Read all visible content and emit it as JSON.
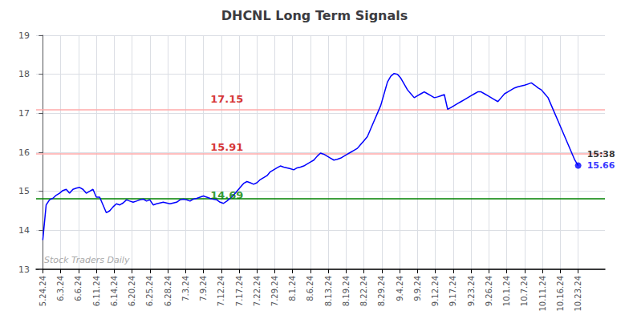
{
  "chart_data": {
    "type": "line",
    "title": "DHCNL Long Term Signals",
    "watermark": "Stock Traders Daily",
    "x": [
      0,
      1,
      2,
      3,
      4,
      5,
      6,
      7,
      8,
      9,
      10,
      11,
      12,
      13,
      14,
      15,
      16,
      17,
      18,
      19,
      20,
      21,
      22,
      23,
      24,
      25,
      26,
      27,
      28,
      29,
      30,
      31,
      32,
      33,
      34,
      35,
      36,
      37,
      38,
      39,
      40,
      41,
      42,
      43,
      44,
      45,
      46,
      47,
      48,
      49,
      50,
      51,
      52,
      53,
      54,
      55,
      56,
      57,
      58,
      59,
      60,
      61,
      62,
      63,
      64,
      65,
      66,
      67,
      68,
      69,
      70,
      71,
      72,
      73,
      74,
      75,
      76,
      77,
      78,
      79,
      80,
      81,
      82,
      83,
      84,
      85,
      86,
      87,
      88,
      89,
      90,
      91,
      92,
      93,
      94,
      95,
      96,
      97,
      98,
      99,
      100,
      101,
      102,
      103,
      104,
      105,
      106,
      107,
      108,
      109,
      110,
      111,
      112,
      113,
      114,
      115,
      116,
      117,
      118,
      119,
      120,
      121,
      122,
      123,
      124,
      125,
      126,
      127,
      128,
      129,
      130,
      131,
      132,
      133,
      134,
      135,
      136,
      137,
      138,
      139,
      140,
      141,
      142,
      143,
      144,
      145,
      146,
      147,
      148,
      149,
      150,
      151,
      152,
      153,
      154,
      155,
      156,
      157,
      158,
      159,
      160
    ],
    "series": [
      {
        "color": "blue",
        "values": [
          13.75,
          14.65,
          14.78,
          14.82,
          14.9,
          14.95,
          15.02,
          15.05,
          14.95,
          15.05,
          15.08,
          15.1,
          15.05,
          14.95,
          15.0,
          15.05,
          14.85,
          14.85,
          14.65,
          14.45,
          14.5,
          14.6,
          14.68,
          14.65,
          14.7,
          14.78,
          14.75,
          14.72,
          14.75,
          14.78,
          14.8,
          14.75,
          14.78,
          14.65,
          14.68,
          14.7,
          14.72,
          14.7,
          14.68,
          14.7,
          14.72,
          14.78,
          14.8,
          14.78,
          14.75,
          14.8,
          14.82,
          14.85,
          14.88,
          14.85,
          14.82,
          14.8,
          14.78,
          14.72,
          14.69,
          14.75,
          14.82,
          14.9,
          15.0,
          15.1,
          15.2,
          15.25,
          15.22,
          15.18,
          15.22,
          15.3,
          15.35,
          15.4,
          15.5,
          15.55,
          15.6,
          15.65,
          15.62,
          15.6,
          15.58,
          15.55,
          15.6,
          15.62,
          15.65,
          15.7,
          15.75,
          15.8,
          15.9,
          15.98,
          15.95,
          15.9,
          15.85,
          15.8,
          15.82,
          15.85,
          15.9,
          15.95,
          16.0,
          16.05,
          16.1,
          16.2,
          16.3,
          16.4,
          16.6,
          16.8,
          17.0,
          17.2,
          17.5,
          17.8,
          17.95,
          18.02,
          18.0,
          17.9,
          17.75,
          17.6,
          17.5,
          17.4,
          17.45,
          17.5,
          17.55,
          17.5,
          17.45,
          17.4,
          17.42,
          17.45,
          17.48,
          17.1,
          17.15,
          17.2,
          17.25,
          17.3,
          17.35,
          17.4,
          17.45,
          17.5,
          17.55,
          17.55,
          17.5,
          17.45,
          17.4,
          17.35,
          17.3,
          17.4,
          17.5,
          17.55,
          17.6,
          17.65,
          17.68,
          17.7,
          17.72,
          17.75,
          17.78,
          17.72,
          17.65,
          17.6,
          17.5,
          17.4,
          17.2,
          17.0,
          16.8,
          16.6,
          16.4,
          16.2,
          16.0,
          15.8,
          15.66
        ]
      }
    ],
    "xlim": [
      -2,
      168
    ],
    "xticks": [
      {
        "value": 0,
        "label": "5.24.24"
      },
      {
        "value": 5.333,
        "label": "6.3.24"
      },
      {
        "value": 10.667,
        "label": "6.6.24"
      },
      {
        "value": 16,
        "label": "6.11.24"
      },
      {
        "value": 21.333,
        "label": "6.14.24"
      },
      {
        "value": 26.667,
        "label": "6.20.24"
      },
      {
        "value": 32,
        "label": "6.25.24"
      },
      {
        "value": 37.333,
        "label": "6.28.24"
      },
      {
        "value": 42.667,
        "label": "7.3.24"
      },
      {
        "value": 48,
        "label": "7.9.24"
      },
      {
        "value": 53.333,
        "label": "7.12.24"
      },
      {
        "value": 58.667,
        "label": "7.17.24"
      },
      {
        "value": 64,
        "label": "7.22.24"
      },
      {
        "value": 69.333,
        "label": "7.29.24"
      },
      {
        "value": 74.667,
        "label": "8.1.24"
      },
      {
        "value": 80,
        "label": "8.6.24"
      },
      {
        "value": 85.333,
        "label": "8.13.24"
      },
      {
        "value": 90.667,
        "label": "8.19.24"
      },
      {
        "value": 96,
        "label": "8.22.24"
      },
      {
        "value": 101.333,
        "label": "8.29.24"
      },
      {
        "value": 106.667,
        "label": "9.4.24"
      },
      {
        "value": 112,
        "label": "9.9.24"
      },
      {
        "value": 117.333,
        "label": "9.12.24"
      },
      {
        "value": 122.667,
        "label": "9.17.24"
      },
      {
        "value": 128,
        "label": "9.23.24"
      },
      {
        "value": 133.333,
        "label": "9.26.24"
      },
      {
        "value": 138.667,
        "label": "10.1.24"
      },
      {
        "value": 144,
        "label": "10.7.24"
      },
      {
        "value": 149.333,
        "label": "10.11.24"
      },
      {
        "value": 154.667,
        "label": "10.16.24"
      },
      {
        "value": 160,
        "label": "10.23.24"
      }
    ],
    "ylim": [
      13,
      19
    ],
    "yticks": [
      13,
      14,
      15,
      16,
      17,
      18,
      19
    ],
    "hlines": [
      {
        "y": 14.82,
        "color": "green"
      },
      {
        "y": 17.1,
        "color": "#ffaaaa"
      },
      {
        "y": 15.97,
        "color": "#ffaaaa"
      }
    ],
    "annotations": [
      {
        "x": 55,
        "y": 17.15,
        "text": "17.15",
        "color": "#cc0000"
      },
      {
        "x": 55,
        "y": 15.91,
        "text": "15.91",
        "color": "#cc0000"
      },
      {
        "x": 55,
        "y": 14.69,
        "text": "14.69",
        "color": "green"
      },
      {
        "x": 160,
        "y": 15.66,
        "text": "15:38",
        "color": "black"
      },
      {
        "x": 160,
        "y": 15.66,
        "text": "15.66",
        "color": "blue"
      }
    ],
    "grid": true
  }
}
